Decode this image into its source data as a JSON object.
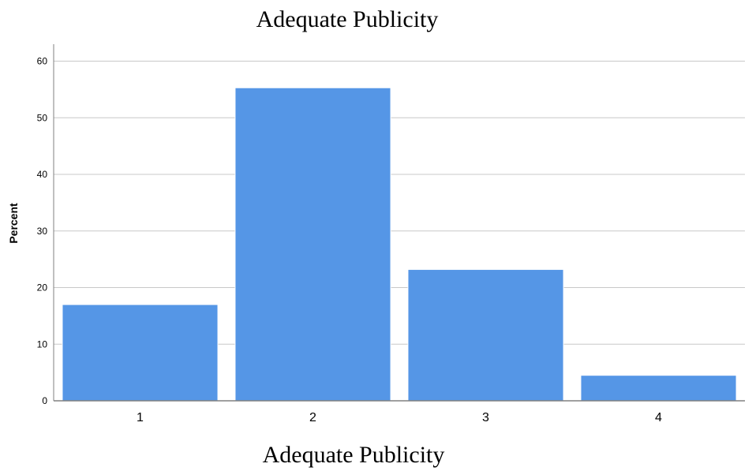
{
  "chart_data": {
    "type": "bar",
    "title": "Adequate Publicity",
    "xlabel": "Adequate Publicity",
    "ylabel": "Percent",
    "categories": [
      "1",
      "2",
      "3",
      "4"
    ],
    "values": [
      17.0,
      55.3,
      23.2,
      4.5
    ],
    "ylim": [
      0,
      63
    ],
    "yticks": [
      0,
      10,
      20,
      30,
      40,
      50,
      60
    ],
    "grid": true,
    "bar_color": "#5596e6",
    "grid_color": "#c8c8c8",
    "axis_color": "#808080"
  }
}
